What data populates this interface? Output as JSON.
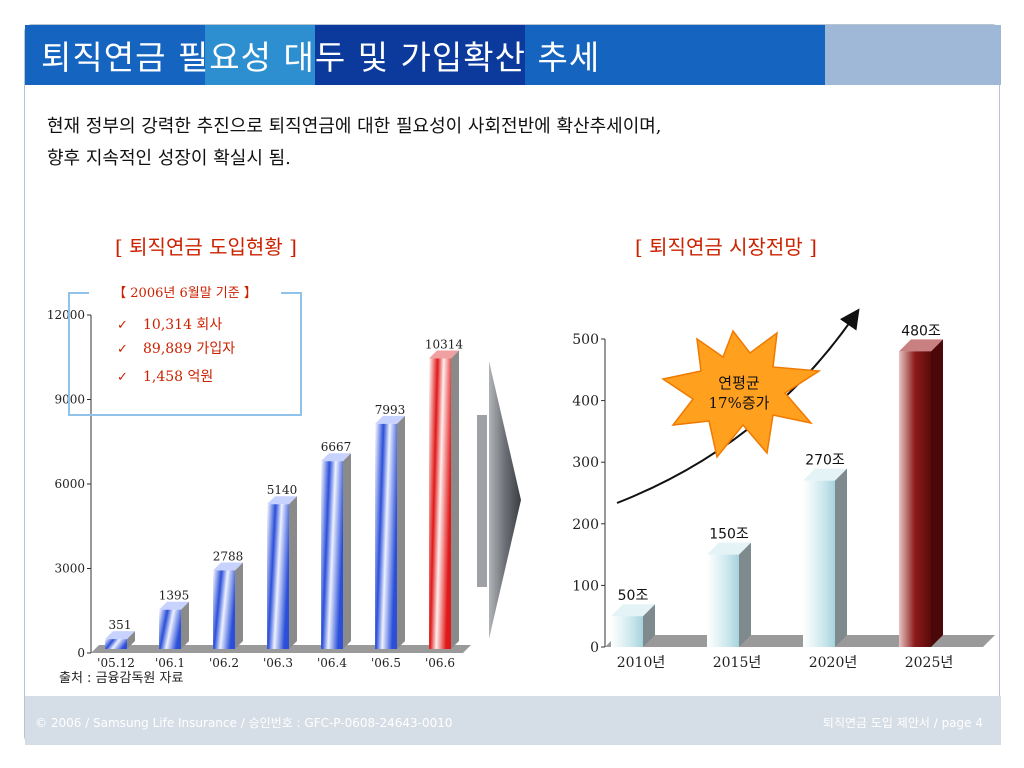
{
  "title": "퇴직연금 필요성 대두 및 가입확산 추세",
  "colors": {
    "title_blue_1": "#1565c0",
    "title_blue_2": "#2d8fd0",
    "title_dark": "#0b3a9c",
    "title_tail": "#9fb8d8",
    "red_text": "#cc2200"
  },
  "intro": {
    "line1": "현재 정부의 강력한 추진으로 퇴직연금에 대한 필요성이 사회전반에 확산추세이며,",
    "line2": "향후 지속적인 성장이 확실시 됨."
  },
  "left_section_title": "[ 퇴직연금 도입현황 ]",
  "right_section_title": "[ 퇴직연금 시장전망 ]",
  "legend_box": {
    "header": "【 2006년 6월말 기준 】",
    "check_icon": "check-mark-icon",
    "items": [
      "10,314 회사",
      "89,889 가입자",
      "1,458 억원"
    ]
  },
  "burst": {
    "line1": "연평균",
    "line2": "17%증가"
  },
  "source": "출처 : 금융감독원 자료",
  "footer": {
    "left": "© 2006 / Samsung Life Insurance / 승인번호 : GFC-P-0608-24643-0010",
    "right": "퇴직연금 도입 제안서  /  page 4"
  },
  "chart_data": [
    {
      "type": "bar",
      "categories": [
        "'05.12",
        "'06.1",
        "'06.2",
        "'06.3",
        "'06.4",
        "'06.5",
        "'06.6"
      ],
      "values": [
        351,
        1395,
        2788,
        5140,
        6667,
        7993,
        10314
      ],
      "data_labels": [
        "351",
        "1395",
        "2788",
        "5140",
        "6667",
        "7993",
        "10314"
      ],
      "yticks": [
        0,
        3000,
        6000,
        9000,
        12000
      ],
      "ylim": [
        0,
        12000
      ],
      "highlight_last": true,
      "bar_color": "#2b4fd8",
      "highlight_color": "#e01818"
    },
    {
      "type": "bar",
      "categories": [
        "2010년",
        "2015년",
        "2020년",
        "2025년"
      ],
      "values": [
        50,
        150,
        270,
        480
      ],
      "data_labels": [
        "50조",
        "150조",
        "270조",
        "480조"
      ],
      "yticks": [
        0,
        100,
        200,
        300,
        400,
        500
      ],
      "ylim": [
        0,
        500
      ],
      "bar_colors": [
        "#cfe9ef",
        "#b9dde6",
        "#a8d2dc",
        "#7a1010"
      ]
    }
  ]
}
